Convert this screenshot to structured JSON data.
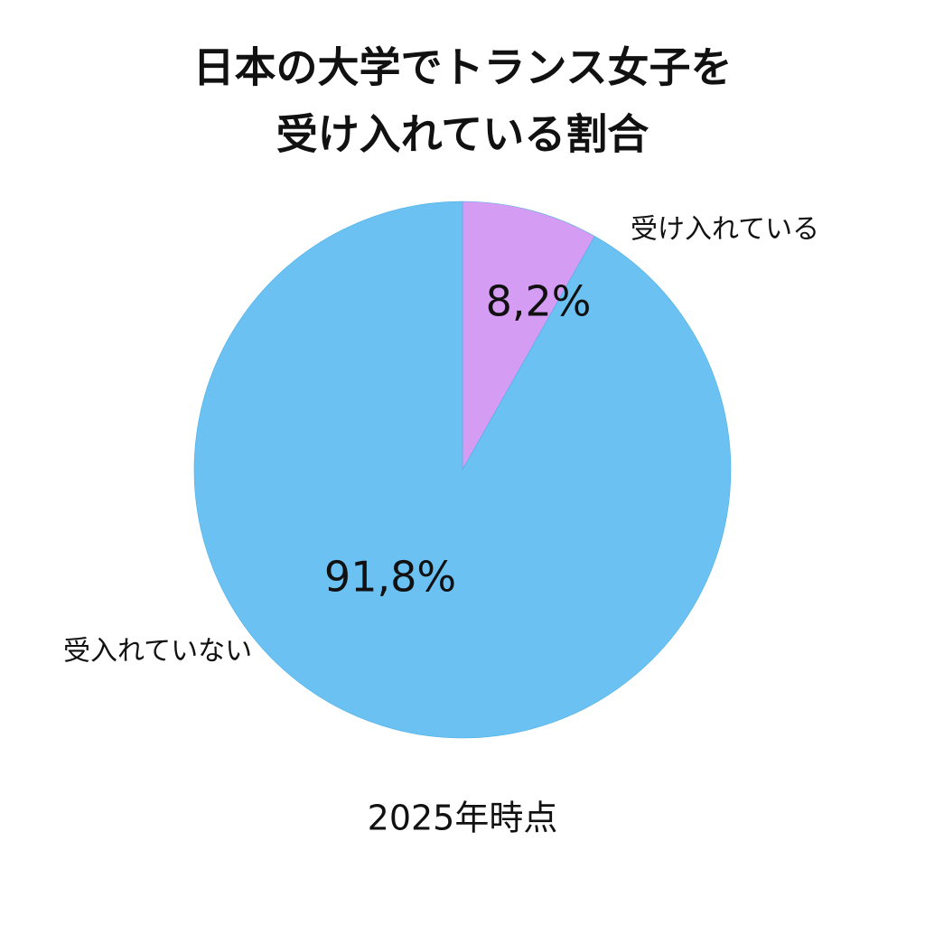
{
  "chart_data": {
    "type": "pie",
    "title": [
      "日本の大学でトランス女子を",
      "受け入れている割合"
    ],
    "categories": [
      "受け入れている",
      "受入れていない"
    ],
    "values": [
      8.2,
      91.8
    ],
    "value_labels": [
      "8,2%",
      "91,8%"
    ],
    "colors": [
      "#d49cf2",
      "#6ac1f2"
    ],
    "footnote": "2025年時点"
  }
}
